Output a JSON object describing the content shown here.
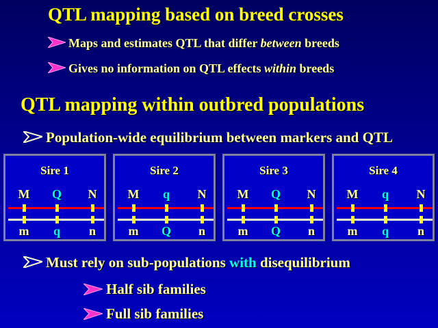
{
  "title1": "QTL mapping based on breed crosses",
  "bullets1": [
    {
      "pre": "Maps and estimates QTL that differ ",
      "em": "between",
      "post": " breeds"
    },
    {
      "pre": "Gives no information on QTL effects ",
      "em": "within",
      "post": " breeds"
    }
  ],
  "title2": "QTL mapping within outbred populations",
  "bullet2": "Population-wide equilibrium between markers and QTL",
  "sires": [
    {
      "name": "Sire 1",
      "top": [
        "M",
        "Q",
        "N"
      ],
      "bottom": [
        "m",
        "q",
        "n"
      ]
    },
    {
      "name": "Sire 2",
      "top": [
        "M",
        "q",
        "N"
      ],
      "bottom": [
        "m",
        "Q",
        "n"
      ]
    },
    {
      "name": "Sire 3",
      "top": [
        "M",
        "Q",
        "N"
      ],
      "bottom": [
        "m",
        "Q",
        "n"
      ]
    },
    {
      "name": "Sire 4",
      "top": [
        "M",
        "q",
        "N"
      ],
      "bottom": [
        "m",
        "q",
        "n"
      ]
    }
  ],
  "bullet3": {
    "pre": "Must rely on sub-populations ",
    "hl": "with",
    "post": " disequilibrium"
  },
  "subbullets": [
    "Half sib families",
    "Full sib families"
  ],
  "colors": {
    "title": "#ffff00",
    "text": "#ffff99",
    "qtl": "#00ffff",
    "arrow_pink": "#ff33cc",
    "line_top": "#ff0000",
    "line_bottom": "#ffffcc",
    "marker": "#ffff00"
  }
}
